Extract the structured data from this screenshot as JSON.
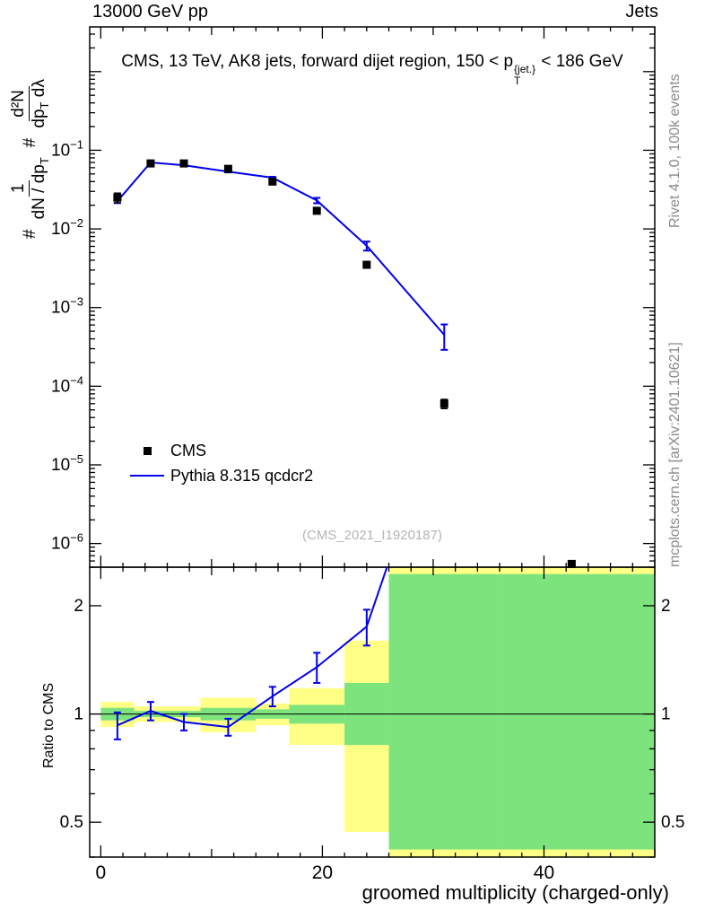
{
  "header": {
    "beam": "13000 GeV pp",
    "analysis_group": "Jets"
  },
  "side_notes": {
    "top_right": "Rivet 4.1.0, 100k events",
    "bottom_right": "mcplots.cern.ch [arXiv:2401.10621]"
  },
  "watermark": "(CMS_2021_I1920187)",
  "colors": {
    "mc_line": "#0000ee",
    "data_marker": "#000000",
    "band_yellow": "#ffff85",
    "band_green": "#7de37d",
    "frame": "#000000",
    "note_gray": "#8a8a8a"
  },
  "chart_data": {
    "type": "line",
    "title": "CMS, 13 TeV, AK8 jets, forward dijet region, 150 < pT^{jet.} < 186 GeV",
    "title_parts": {
      "pre": "CMS, 13 TeV, AK8 jets, forward dijet region, 150 < p",
      "sup": "{jet.}",
      "sub": "T",
      "post": " < 186 GeV"
    },
    "xlabel": "groomed multiplicity (charged-only)",
    "ylabel": "# 1/(dN/dpT) # d2N/(dpT dlambda)",
    "ylabel_parts": {
      "hash1": "#",
      "f1_num": "1",
      "f1_den_main": "dN / dp",
      "f1_den_sub": "T",
      "hash2": "#",
      "f2_num": "d²N",
      "f2_den_main": "dp",
      "f2_den_sub": "T",
      "f2_den_tail": " dλ"
    },
    "ratio_ylabel": "Ratio to CMS",
    "legend": [
      {
        "label": "CMS",
        "style": "marker"
      },
      {
        "label": "Pythia 8.315 qcdcr2",
        "style": "line"
      }
    ],
    "xlim": [
      -1,
      50
    ],
    "xticks": [
      0,
      20,
      40
    ],
    "xticks_mid": [
      10,
      30,
      50
    ],
    "main": {
      "ylim": [
        5e-07,
        3.7
      ],
      "ytick_exponents": [
        -1,
        -2,
        -3,
        -4,
        -5,
        -6
      ],
      "cms": {
        "x": [
          1.5,
          4.5,
          7.5,
          11.5,
          15.5,
          19.5,
          24,
          31,
          42.5
        ],
        "y": [
          0.025,
          0.068,
          0.068,
          0.058,
          0.04,
          0.017,
          0.0035,
          6e-05,
          5.5e-07
        ],
        "yerr": [
          0.0035,
          0.003,
          0.003,
          0.0025,
          0.002,
          0.0012,
          0.0003,
          8e-06,
          0
        ]
      },
      "pythia": {
        "x": [
          1.5,
          4.5,
          7.5,
          11.5,
          15.5,
          19.5,
          24,
          31
        ],
        "y": [
          0.0225,
          0.07,
          0.0645,
          0.0535,
          0.0448,
          0.023,
          0.0061,
          0.00045
        ],
        "yerr": [
          0.0012,
          0.0015,
          0.0015,
          0.0012,
          0.0012,
          0.0018,
          0.0008,
          0.00016
        ]
      }
    },
    "ratio": {
      "ylim": [
        0.4,
        2.56
      ],
      "yticks": [
        0.5,
        1,
        2
      ],
      "yticks_minor": [
        0.4,
        0.6,
        0.7,
        0.8,
        0.9
      ],
      "line": {
        "x": [
          1.5,
          4.5,
          7.5,
          11.5,
          15.5,
          19.5,
          24,
          31
        ],
        "y": [
          0.93,
          1.02,
          0.95,
          0.92,
          1.12,
          1.35,
          1.75,
          7.5
        ],
        "yerr": [
          0.08,
          0.06,
          0.05,
          0.05,
          0.07,
          0.13,
          0.2,
          3
        ]
      },
      "bands": [
        {
          "x": [
            0,
            3
          ],
          "yellow": [
            0.92,
            1.08
          ],
          "green": [
            0.96,
            1.04
          ]
        },
        {
          "x": [
            3,
            6
          ],
          "yellow": [
            0.95,
            1.05
          ],
          "green": [
            0.98,
            1.02
          ]
        },
        {
          "x": [
            6,
            9
          ],
          "yellow": [
            0.95,
            1.05
          ],
          "green": [
            0.98,
            1.02
          ]
        },
        {
          "x": [
            9,
            14
          ],
          "yellow": [
            0.89,
            1.11
          ],
          "green": [
            0.96,
            1.04
          ]
        },
        {
          "x": [
            14,
            17
          ],
          "yellow": [
            0.93,
            1.07
          ],
          "green": [
            0.97,
            1.03
          ]
        },
        {
          "x": [
            17,
            22
          ],
          "yellow": [
            0.82,
            1.18
          ],
          "green": [
            0.94,
            1.06
          ]
        },
        {
          "x": [
            22,
            26
          ],
          "yellow": [
            0.47,
            1.6
          ],
          "green": [
            0.82,
            1.22
          ]
        },
        {
          "x": [
            26,
            36
          ],
          "yellow": [
            0.4,
            2.56
          ],
          "green": [
            0.42,
            2.45
          ]
        },
        {
          "x": [
            36,
            50
          ],
          "yellow": [
            0.4,
            2.56
          ],
          "green": [
            0.42,
            2.45
          ]
        }
      ]
    }
  }
}
